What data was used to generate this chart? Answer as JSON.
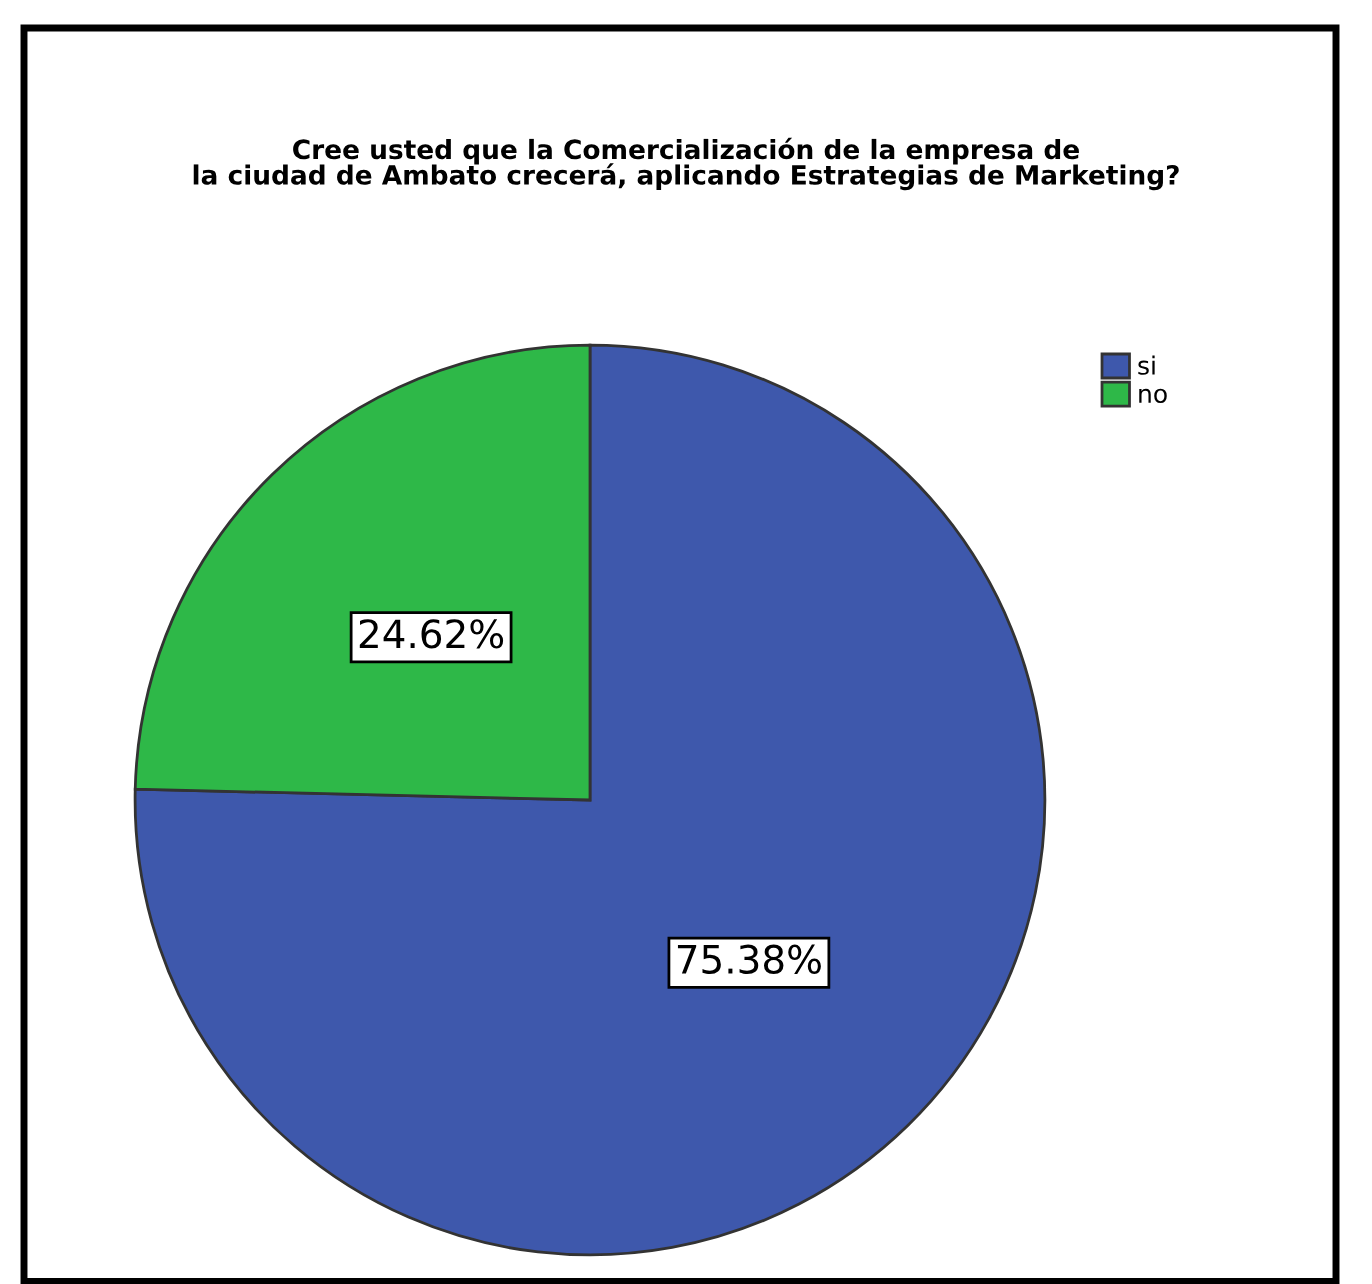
{
  "chart_data": {
    "type": "pie",
    "title": "Cree usted que la Comercialización de la empresa de\nla ciudad de Ambato crecerá, aplicando Estrategias de Marketing?",
    "categories": [
      "si",
      "no"
    ],
    "values": [
      75.38,
      24.62
    ],
    "colors": [
      "#3e58ac",
      "#2eb848"
    ],
    "value_labels": [
      "75.38%",
      "24.62%"
    ],
    "legend": "top right"
  }
}
